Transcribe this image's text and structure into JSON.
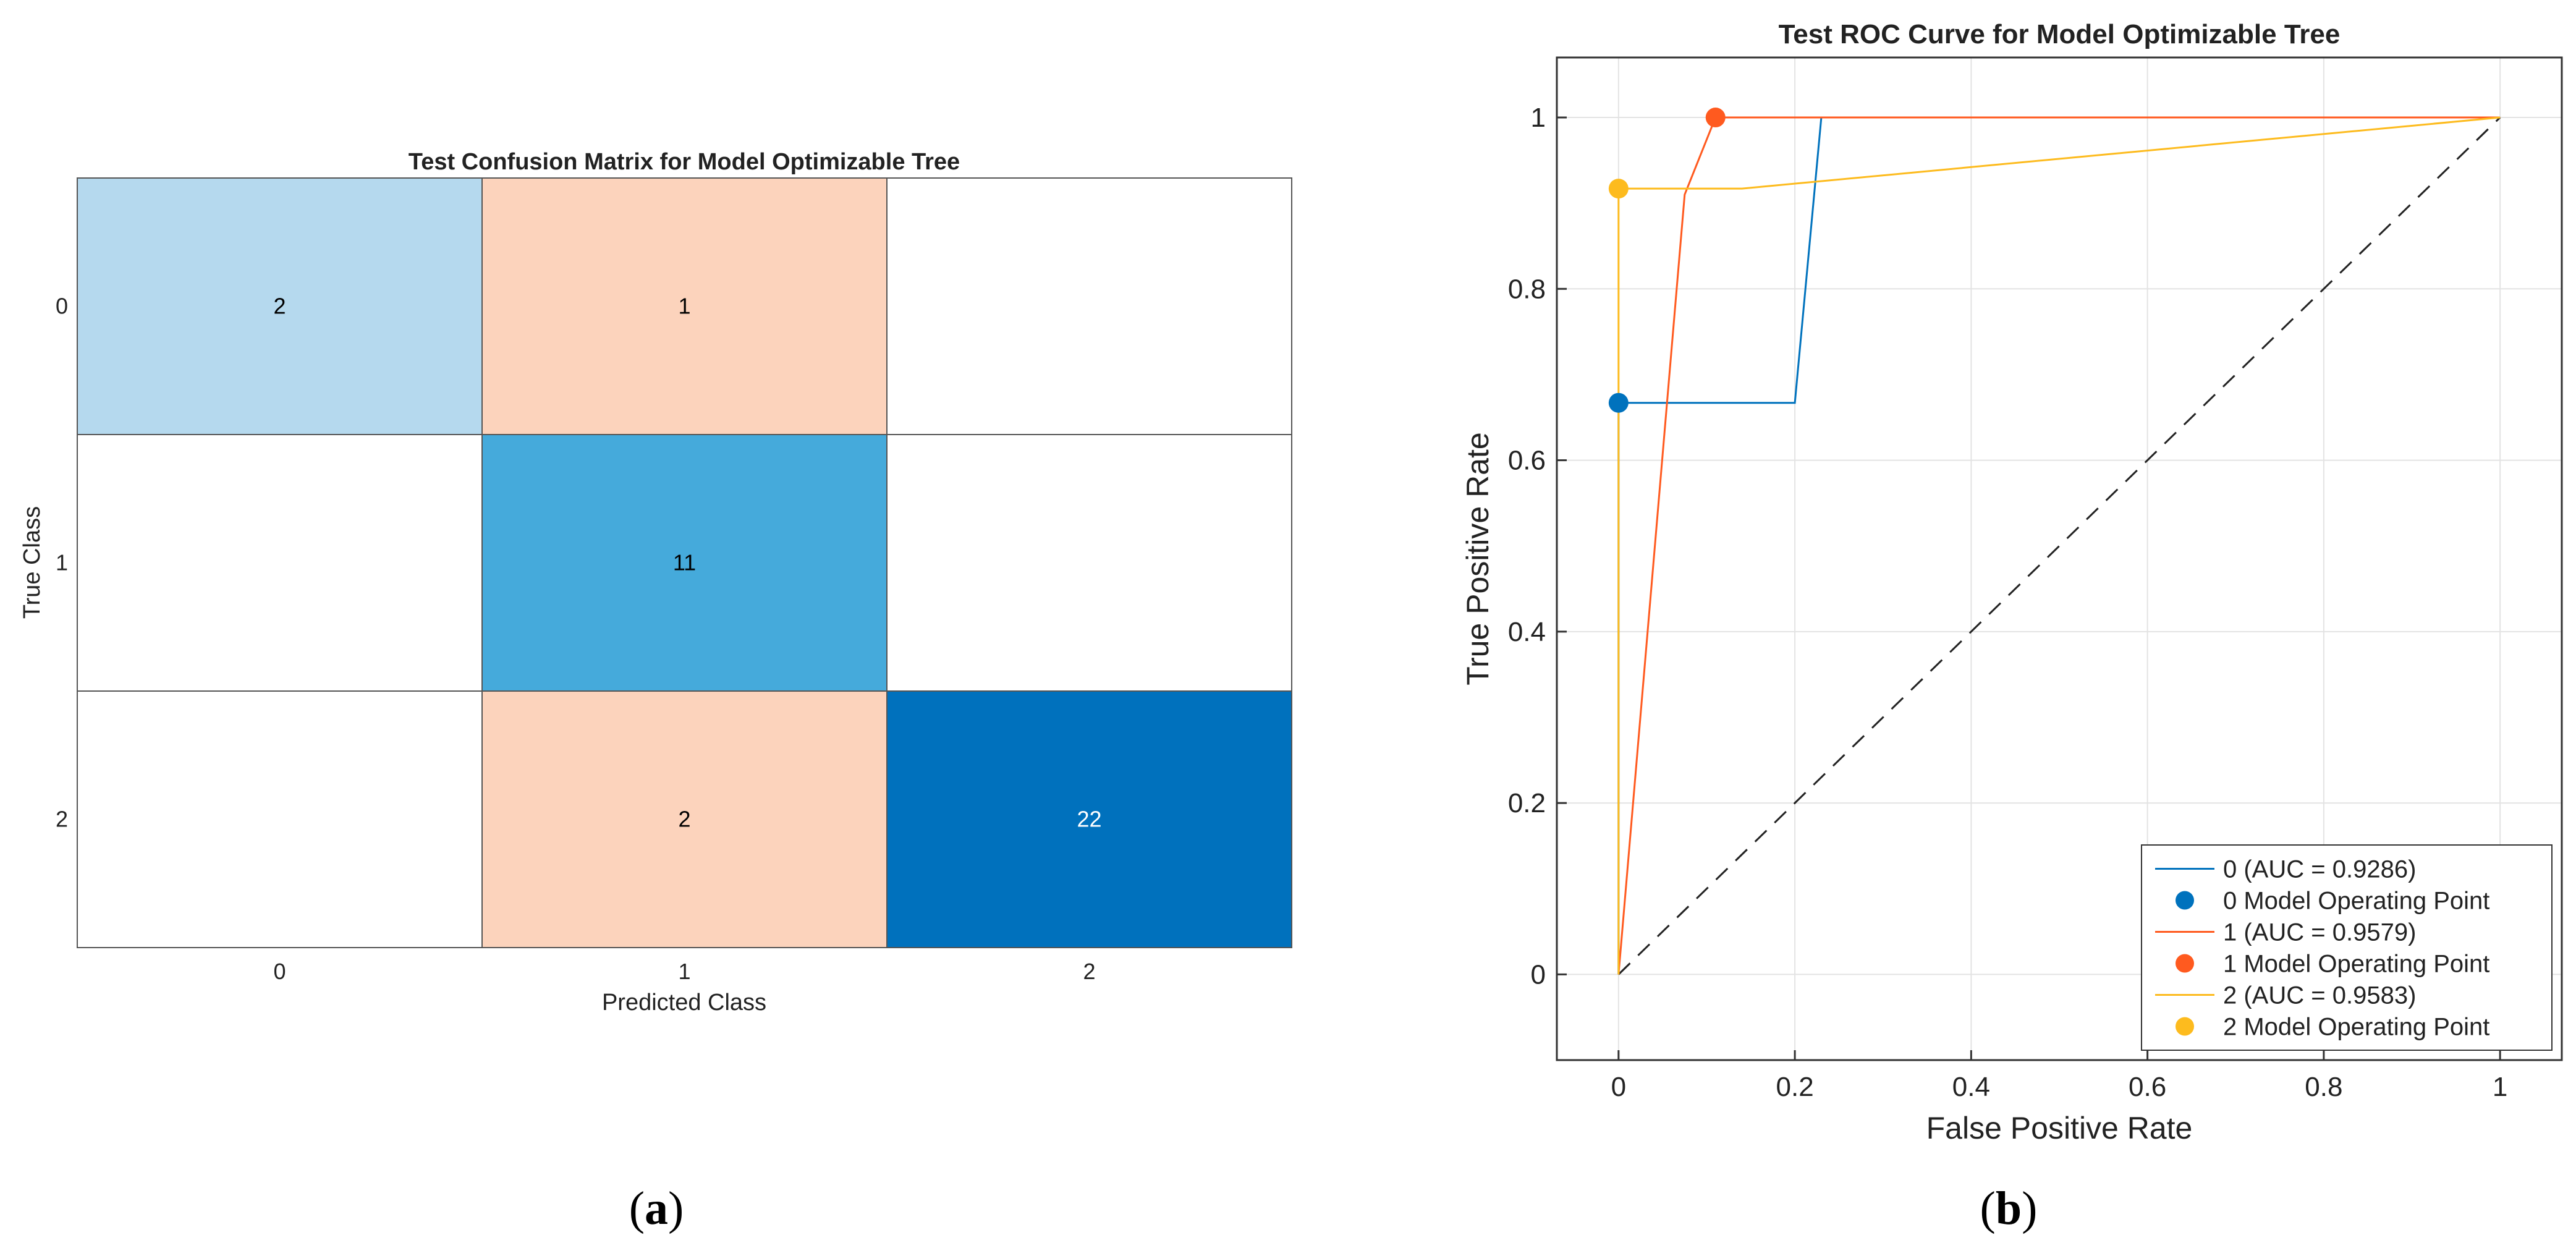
{
  "panels": {
    "a": {
      "label_open": "(",
      "letter": "a",
      "label_close": ")"
    },
    "b": {
      "label_open": "(",
      "letter": "b",
      "label_close": ")"
    }
  },
  "chart_data": [
    {
      "type": "heatmap",
      "title": "Test Confusion Matrix for Model Optimizable Tree",
      "xlabel": "Predicted Class",
      "ylabel": "True Class",
      "row_labels": [
        "0",
        "1",
        "2"
      ],
      "col_labels": [
        "0",
        "1",
        "2"
      ],
      "values": [
        [
          2,
          1,
          null
        ],
        [
          null,
          11,
          null
        ],
        [
          null,
          2,
          22
        ]
      ],
      "colors": {
        "correct_light": "#b5d9ee",
        "correct_mid": "#45aadb",
        "correct_dark": "#0071bd",
        "error": "#fcd3bc",
        "empty": "#ffffff",
        "grid": "#555555",
        "text_light": "#ffffff",
        "text_dark": "#000000"
      },
      "grid": true
    },
    {
      "type": "line",
      "title": "Test ROC Curve for Model Optimizable Tree",
      "xlabel": "False Positive Rate",
      "ylabel": "True Positive Rate",
      "xlim": [
        -0.07,
        1.07
      ],
      "ylim": [
        -0.1,
        1.07
      ],
      "xticks": [
        0,
        0.2,
        0.4,
        0.6,
        0.8,
        1
      ],
      "xtick_labels": [
        "0",
        "0.2",
        "0.4",
        "0.6",
        "0.8",
        "1"
      ],
      "yticks": [
        0,
        0.2,
        0.4,
        0.6,
        0.8,
        1
      ],
      "ytick_labels": [
        "0",
        "0.2",
        "0.4",
        "0.6",
        "0.8",
        "1"
      ],
      "grid": true,
      "legend_position": "bottom-right",
      "series": [
        {
          "name": "0 (AUC = 0.9286)",
          "color": "#0072bd",
          "x": [
            0,
            0,
            0.2,
            0.2,
            0.23,
            1
          ],
          "y": [
            0,
            0.667,
            0.667,
            0.667,
            1,
            1
          ],
          "operating_point": {
            "name": "0 Model Operating Point",
            "x": 0,
            "y": 0.667
          }
        },
        {
          "name": "1 (AUC = 0.9579)",
          "color": "#ff5a1f",
          "x": [
            0,
            0.075,
            0.11,
            0.86,
            1
          ],
          "y": [
            0,
            0.91,
            1,
            1,
            1
          ],
          "operating_point": {
            "name": "1 Model Operating Point",
            "x": 0.11,
            "y": 1
          }
        },
        {
          "name": "2 (AUC = 0.9583)",
          "color": "#fdbb1e",
          "x": [
            0,
            0,
            0.14,
            1
          ],
          "y": [
            0,
            0.917,
            0.917,
            1
          ],
          "operating_point": {
            "name": "2 Model Operating Point",
            "x": 0,
            "y": 0.917
          }
        }
      ],
      "diagonal": {
        "x": [
          0,
          1
        ],
        "y": [
          0,
          1
        ],
        "color": "#222222",
        "style": "dashed"
      }
    }
  ]
}
